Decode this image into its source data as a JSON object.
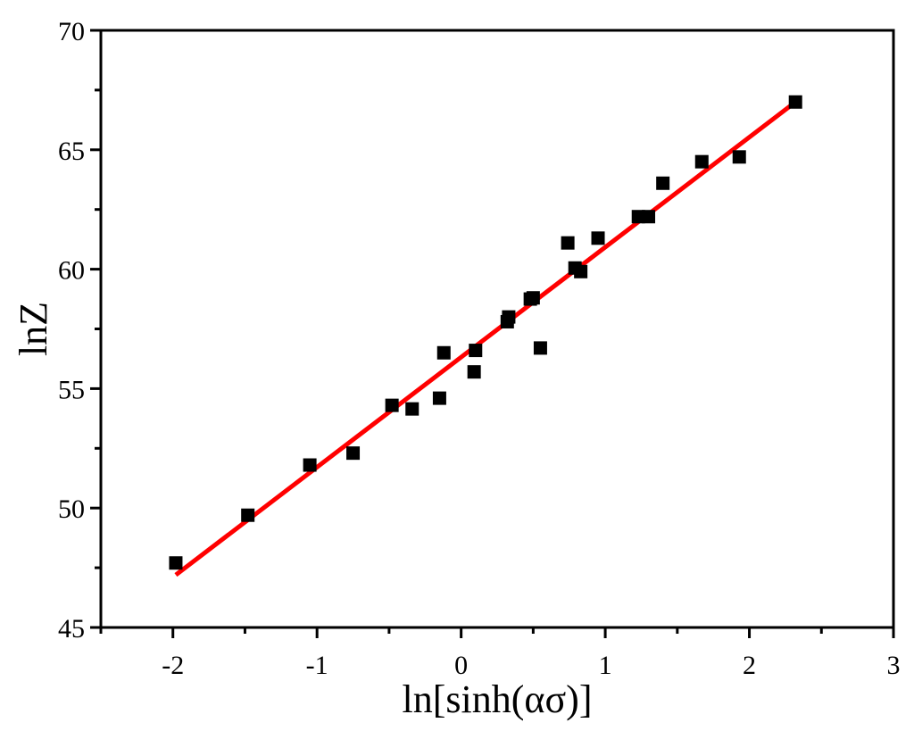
{
  "chart_data": {
    "type": "scatter",
    "xlabel": "ln[sinh(ασ)]",
    "ylabel": "lnZ",
    "xlim": [
      -2.5,
      3
    ],
    "ylim": [
      45,
      70
    ],
    "x_ticks": [
      -2,
      -1,
      0,
      1,
      2,
      3
    ],
    "x_tick_labels": [
      "-2",
      "-1",
      "0",
      "1",
      "2",
      "3"
    ],
    "y_ticks": [
      45,
      50,
      55,
      60,
      65,
      70
    ],
    "y_tick_labels": [
      "45",
      "50",
      "55",
      "60",
      "65",
      "70"
    ],
    "grid": false,
    "legend": "none",
    "marker_color": "#000000",
    "line_color": "#ff0000",
    "series": [
      {
        "type": "scatter",
        "marker": "square",
        "points": [
          [
            -1.98,
            47.7
          ],
          [
            -1.48,
            49.7
          ],
          [
            -1.05,
            51.8
          ],
          [
            -0.75,
            52.3
          ],
          [
            -0.48,
            54.3
          ],
          [
            -0.34,
            54.15
          ],
          [
            -0.15,
            54.6
          ],
          [
            -0.12,
            56.5
          ],
          [
            0.09,
            55.7
          ],
          [
            0.1,
            56.6
          ],
          [
            0.32,
            57.8
          ],
          [
            0.33,
            58.0
          ],
          [
            0.48,
            58.75
          ],
          [
            0.5,
            58.8
          ],
          [
            0.55,
            56.7
          ],
          [
            0.74,
            61.1
          ],
          [
            0.79,
            60.05
          ],
          [
            0.83,
            59.9
          ],
          [
            0.95,
            61.3
          ],
          [
            1.23,
            62.2
          ],
          [
            1.3,
            62.2
          ],
          [
            1.4,
            63.6
          ],
          [
            1.67,
            64.5
          ],
          [
            1.93,
            64.7
          ],
          [
            2.32,
            67.0
          ]
        ]
      },
      {
        "type": "line",
        "fit": "linear",
        "x": [
          -1.98,
          2.32
        ],
        "y": [
          47.2,
          67.0
        ]
      }
    ]
  }
}
